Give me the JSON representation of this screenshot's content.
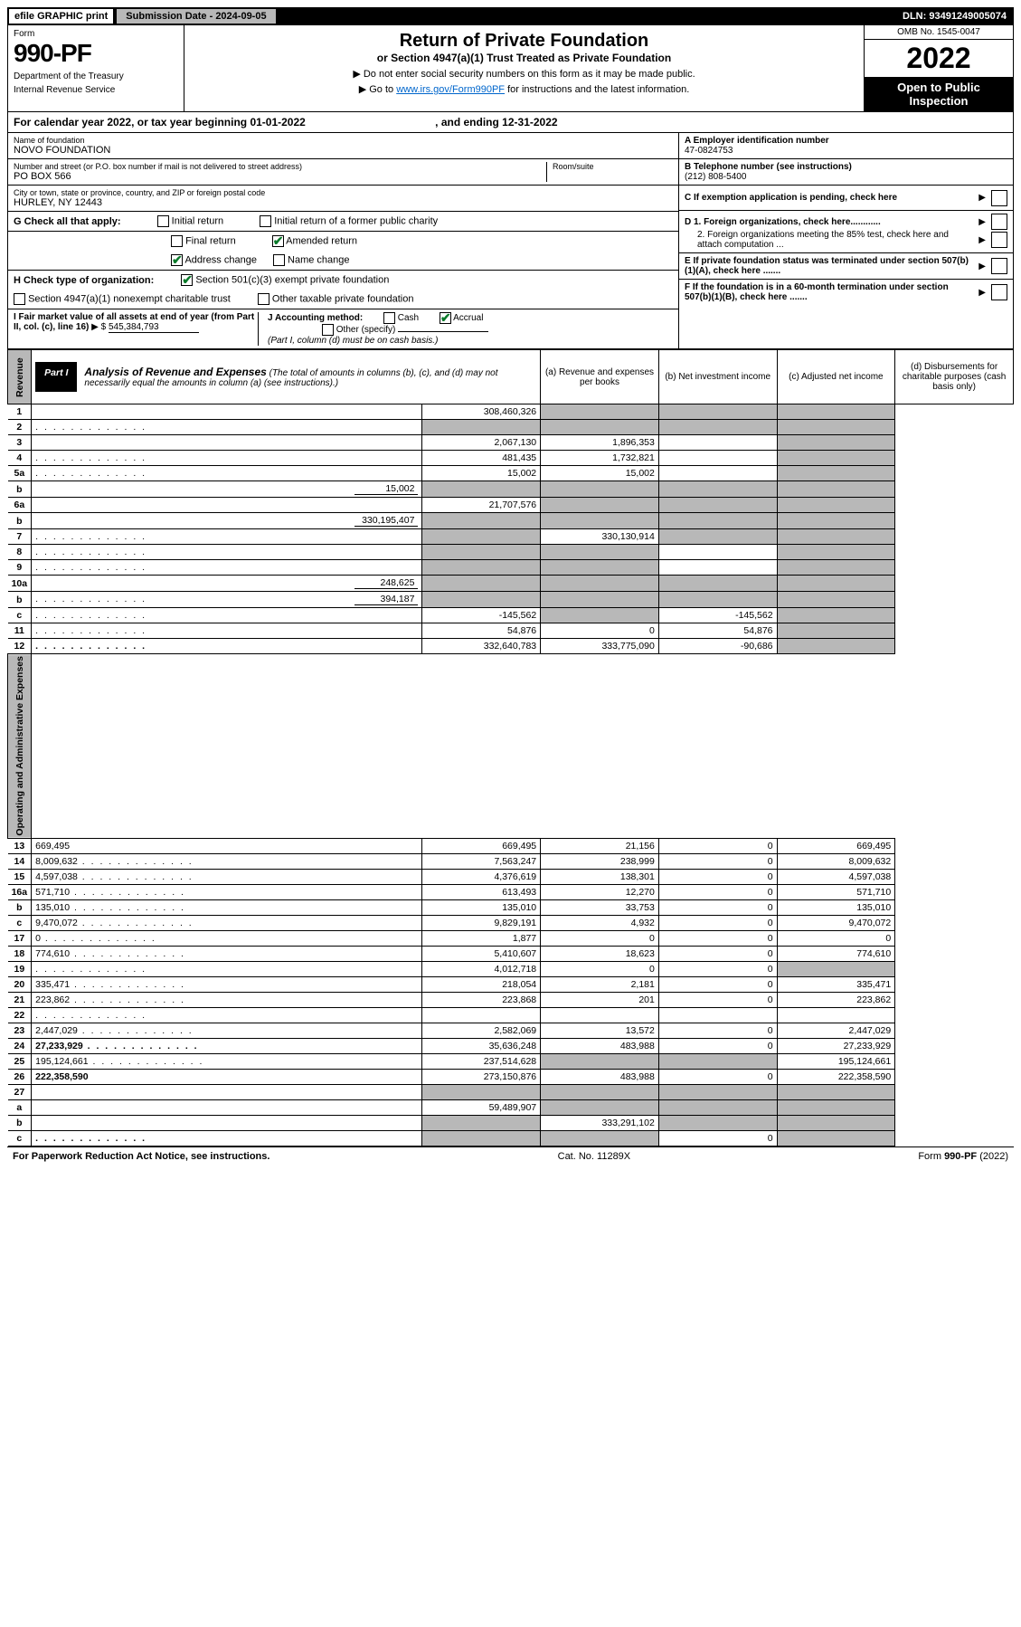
{
  "topBar": {
    "efile": "efile GRAPHIC print",
    "submissionLabel": "Submission Date - 2024-09-05",
    "dln": "DLN: 93491249005074"
  },
  "header": {
    "formLabel": "Form",
    "formNumber": "990-PF",
    "dept1": "Department of the Treasury",
    "dept2": "Internal Revenue Service",
    "title": "Return of Private Foundation",
    "subtitle": "or Section 4947(a)(1) Trust Treated as Private Foundation",
    "note1": "▶ Do not enter social security numbers on this form as it may be made public.",
    "note2a": "▶ Go to ",
    "note2link": "www.irs.gov/Form990PF",
    "note2b": " for instructions and the latest information.",
    "omb": "OMB No. 1545-0047",
    "year": "2022",
    "openPublic": "Open to Public Inspection"
  },
  "calYear": {
    "text": "For calendar year 2022, or tax year beginning 01-01-2022",
    "ending": ", and ending 12-31-2022"
  },
  "identity": {
    "nameLabel": "Name of foundation",
    "name": "NOVO FOUNDATION",
    "addrLabel": "Number and street (or P.O. box number if mail is not delivered to street address)",
    "roomLabel": "Room/suite",
    "addr": "PO BOX 566",
    "cityLabel": "City or town, state or province, country, and ZIP or foreign postal code",
    "city": "HURLEY, NY  12443",
    "einLabel": "A Employer identification number",
    "ein": "47-0824753",
    "phoneLabel": "B Telephone number (see instructions)",
    "phone": "(212) 808-5400",
    "cLabel": "C If exemption application is pending, check here"
  },
  "checks": {
    "gLabel": "G Check all that apply:",
    "g_initial": "Initial return",
    "g_initial_former": "Initial return of a former public charity",
    "g_final": "Final return",
    "g_amended": "Amended return",
    "g_addr": "Address change",
    "g_name": "Name change",
    "hLabel": "H Check type of organization:",
    "h_501c3": "Section 501(c)(3) exempt private foundation",
    "h_4947": "Section 4947(a)(1) nonexempt charitable trust",
    "h_other": "Other taxable private foundation",
    "iLabel": "I Fair market value of all assets at end of year (from Part II, col. (c), line 16)",
    "iValue": "545,384,793",
    "jLabel": "J Accounting method:",
    "j_cash": "Cash",
    "j_accrual": "Accrual",
    "j_other": "Other (specify)",
    "j_note": "(Part I, column (d) must be on cash basis.)",
    "d1": "D 1. Foreign organizations, check here............",
    "d2": "2. Foreign organizations meeting the 85% test, check here and attach computation ...",
    "eLabel": "E  If private foundation status was terminated under section 507(b)(1)(A), check here .......",
    "fLabel": "F  If the foundation is in a 60-month termination under section 507(b)(1)(B), check here .......",
    "amended_checked": true,
    "addr_checked": true,
    "h501_checked": true,
    "accrual_checked": true
  },
  "part1": {
    "label": "Part I",
    "title": "Analysis of Revenue and Expenses",
    "titleNote": " (The total of amounts in columns (b), (c), and (d) may not necessarily equal the amounts in column (a) (see instructions).)",
    "colA": "(a)  Revenue and expenses per books",
    "colB": "(b)  Net investment income",
    "colC": "(c)  Adjusted net income",
    "colD": "(d)  Disbursements for charitable purposes (cash basis only)"
  },
  "revenueLabel": "Revenue",
  "expensesLabel": "Operating and Administrative Expenses",
  "rows": [
    {
      "n": "1",
      "d": "",
      "a": "308,460,326",
      "b": "",
      "c": "",
      "shadeB": true,
      "shadeC": true,
      "shadeD": true
    },
    {
      "n": "2",
      "d": "",
      "a": "",
      "b": "",
      "c": "",
      "shadeA": true,
      "shadeB": true,
      "shadeC": true,
      "shadeD": true,
      "dots": true
    },
    {
      "n": "3",
      "d": "",
      "a": "2,067,130",
      "b": "1,896,353",
      "c": "",
      "shadeD": true
    },
    {
      "n": "4",
      "d": "",
      "a": "481,435",
      "b": "1,732,821",
      "c": "",
      "shadeD": true,
      "dots": true
    },
    {
      "n": "5a",
      "d": "",
      "a": "15,002",
      "b": "15,002",
      "c": "",
      "shadeD": true,
      "dots": true
    },
    {
      "n": "b",
      "d": "",
      "a": "",
      "b": "",
      "c": "",
      "inline": "15,002",
      "shadeA": true,
      "shadeB": true,
      "shadeC": true,
      "shadeD": true
    },
    {
      "n": "6a",
      "d": "",
      "a": "21,707,576",
      "b": "",
      "c": "",
      "shadeB": true,
      "shadeC": true,
      "shadeD": true
    },
    {
      "n": "b",
      "d": "",
      "a": "",
      "b": "",
      "c": "",
      "inline": "330,195,407",
      "shadeA": true,
      "shadeB": true,
      "shadeC": true,
      "shadeD": true
    },
    {
      "n": "7",
      "d": "",
      "a": "",
      "b": "330,130,914",
      "c": "",
      "shadeA": true,
      "shadeC": true,
      "shadeD": true,
      "dots": true
    },
    {
      "n": "8",
      "d": "",
      "a": "",
      "b": "",
      "c": "",
      "shadeA": true,
      "shadeB": true,
      "shadeD": true,
      "dots": true
    },
    {
      "n": "9",
      "d": "",
      "a": "",
      "b": "",
      "c": "",
      "shadeA": true,
      "shadeB": true,
      "shadeD": true,
      "dots": true
    },
    {
      "n": "10a",
      "d": "",
      "a": "",
      "b": "",
      "c": "",
      "inline": "248,625",
      "shadeA": true,
      "shadeB": true,
      "shadeC": true,
      "shadeD": true
    },
    {
      "n": "b",
      "d": "",
      "a": "",
      "b": "",
      "c": "",
      "inline": "394,187",
      "shadeA": true,
      "shadeB": true,
      "shadeC": true,
      "shadeD": true,
      "dots": true
    },
    {
      "n": "c",
      "d": "",
      "a": "-145,562",
      "b": "",
      "c": "-145,562",
      "shadeB": true,
      "shadeD": true,
      "dots": true
    },
    {
      "n": "11",
      "d": "",
      "a": "54,876",
      "b": "0",
      "c": "54,876",
      "shadeD": true,
      "dots": true
    },
    {
      "n": "12",
      "d": "",
      "a": "332,640,783",
      "b": "333,775,090",
      "c": "-90,686",
      "bold": true,
      "shadeD": true,
      "dots": true
    },
    {
      "n": "13",
      "d": "669,495",
      "a": "669,495",
      "b": "21,156",
      "c": "0"
    },
    {
      "n": "14",
      "d": "8,009,632",
      "a": "7,563,247",
      "b": "238,999",
      "c": "0",
      "dots": true
    },
    {
      "n": "15",
      "d": "4,597,038",
      "a": "4,376,619",
      "b": "138,301",
      "c": "0",
      "dots": true
    },
    {
      "n": "16a",
      "d": "571,710",
      "a": "613,493",
      "b": "12,270",
      "c": "0",
      "dots": true
    },
    {
      "n": "b",
      "d": "135,010",
      "a": "135,010",
      "b": "33,753",
      "c": "0",
      "dots": true
    },
    {
      "n": "c",
      "d": "9,470,072",
      "a": "9,829,191",
      "b": "4,932",
      "c": "0",
      "dots": true
    },
    {
      "n": "17",
      "d": "0",
      "a": "1,877",
      "b": "0",
      "c": "0",
      "dots": true
    },
    {
      "n": "18",
      "d": "774,610",
      "a": "5,410,607",
      "b": "18,623",
      "c": "0",
      "dots": true
    },
    {
      "n": "19",
      "d": "",
      "a": "4,012,718",
      "b": "0",
      "c": "0",
      "shadeD": true,
      "dots": true
    },
    {
      "n": "20",
      "d": "335,471",
      "a": "218,054",
      "b": "2,181",
      "c": "0",
      "dots": true
    },
    {
      "n": "21",
      "d": "223,862",
      "a": "223,868",
      "b": "201",
      "c": "0",
      "dots": true
    },
    {
      "n": "22",
      "d": "",
      "a": "",
      "b": "",
      "c": "",
      "dots": true
    },
    {
      "n": "23",
      "d": "2,447,029",
      "a": "2,582,069",
      "b": "13,572",
      "c": "0",
      "dots": true
    },
    {
      "n": "24",
      "d": "27,233,929",
      "a": "35,636,248",
      "b": "483,988",
      "c": "0",
      "bold": true,
      "dots": true
    },
    {
      "n": "25",
      "d": "195,124,661",
      "a": "237,514,628",
      "b": "",
      "c": "",
      "shadeB": true,
      "shadeC": true,
      "dots": true
    },
    {
      "n": "26",
      "d": "222,358,590",
      "a": "273,150,876",
      "b": "483,988",
      "c": "0",
      "bold": true
    },
    {
      "n": "27",
      "d": "",
      "a": "",
      "b": "",
      "c": "",
      "shadeA": true,
      "shadeB": true,
      "shadeC": true,
      "shadeD": true
    },
    {
      "n": "a",
      "d": "",
      "a": "59,489,907",
      "b": "",
      "c": "",
      "bold": true,
      "shadeB": true,
      "shadeC": true,
      "shadeD": true
    },
    {
      "n": "b",
      "d": "",
      "a": "",
      "b": "333,291,102",
      "c": "",
      "bold": true,
      "shadeA": true,
      "shadeC": true,
      "shadeD": true
    },
    {
      "n": "c",
      "d": "",
      "a": "",
      "b": "",
      "c": "0",
      "bold": true,
      "shadeA": true,
      "shadeB": true,
      "shadeD": true,
      "dots": true
    }
  ],
  "footer": {
    "left": "For Paperwork Reduction Act Notice, see instructions.",
    "center": "Cat. No. 11289X",
    "right": "Form 990-PF (2022)"
  }
}
